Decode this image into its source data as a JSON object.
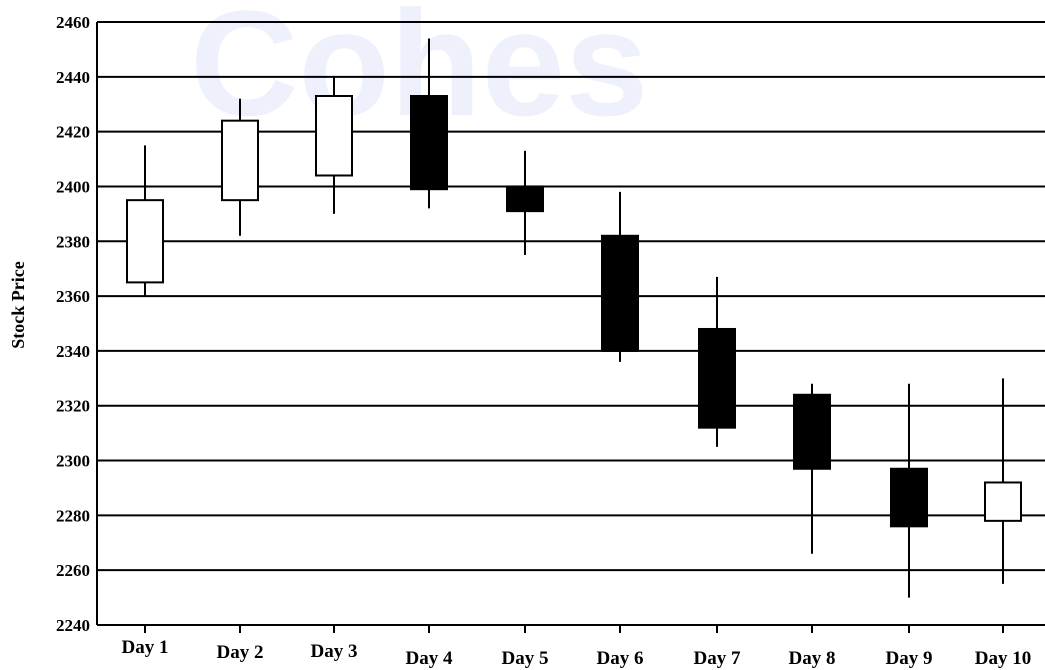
{
  "watermark": "Cohes",
  "chart_data": {
    "type": "candlestick",
    "title": "",
    "xlabel": "",
    "ylabel": "Stock Price",
    "ylim": [
      2240,
      2460
    ],
    "yticks": [
      2240,
      2260,
      2280,
      2300,
      2320,
      2340,
      2360,
      2380,
      2400,
      2420,
      2440,
      2460
    ],
    "grid": true,
    "categories": [
      "Day 1",
      "Day 2",
      "Day 3",
      "Day 4",
      "Day 5",
      "Day 6",
      "Day 7",
      "Day 8",
      "Day 9",
      "Day 10"
    ],
    "series": [
      {
        "open": [
          2365,
          2395,
          2404,
          2433,
          2400,
          2382,
          2348,
          2324,
          2297,
          2278
        ],
        "close": [
          2395,
          2424,
          2433,
          2399,
          2391,
          2340,
          2312,
          2297,
          2276,
          2292
        ],
        "high": [
          2415,
          2432,
          2440,
          2454,
          2413,
          2398,
          2367,
          2328,
          2328,
          2330
        ],
        "low": [
          2360,
          2382,
          2390,
          2392,
          2375,
          2336,
          2305,
          2266,
          2250,
          2255
        ]
      }
    ],
    "colors": {
      "up_fill": "#ffffff",
      "down_fill": "#000000",
      "stroke": "#000000"
    }
  }
}
